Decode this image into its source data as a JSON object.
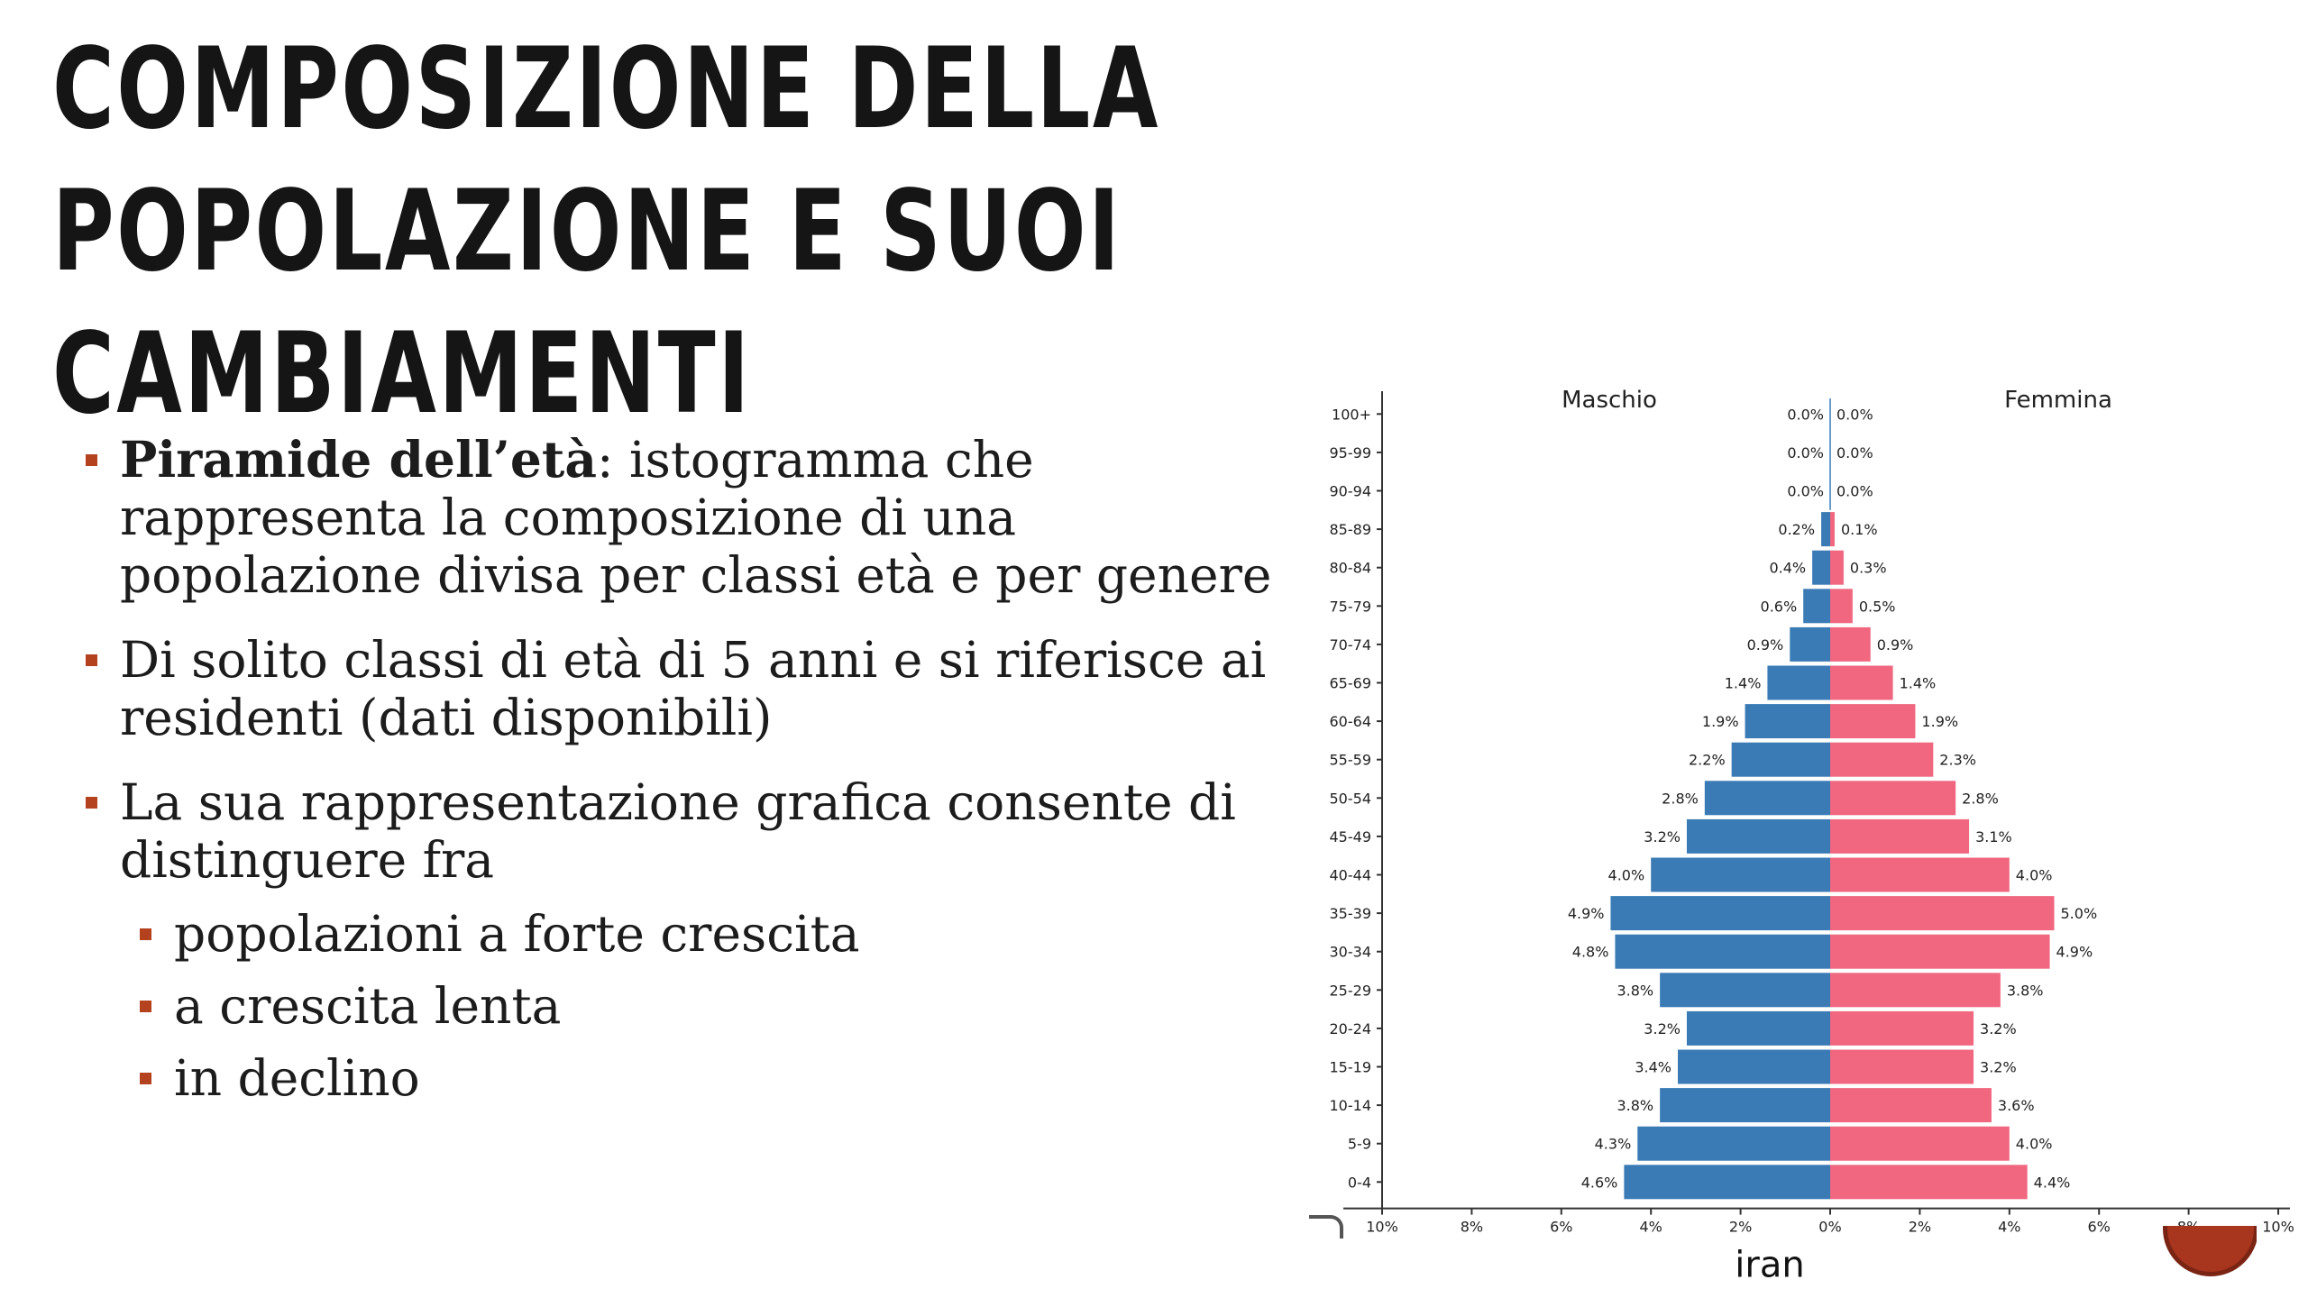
{
  "slide": {
    "title": "Composizione della popolazione e suoi cambiamenti",
    "bullet1_strong": "Piramide dell’età",
    "bullet1_rest": ": istogramma che rappresenta la composizione di una popolazione divisa per classi età e per genere",
    "bullet2": "Di solito classi di età di 5 anni e si riferisce ai residenti (dati disponibili)",
    "bullet3": "La sua rappresentazione grafica consente di distinguere fra",
    "sub_bullets": [
      "popolazioni a forte crescita",
      "a crescita lenta",
      "in declino"
    ],
    "marker_color": "#b4421f"
  },
  "chart_data": {
    "type": "bar",
    "orientation": "horizontal",
    "subtype": "population-pyramid",
    "title": "iran",
    "categories": [
      "100+",
      "95-99",
      "90-94",
      "85-89",
      "80-84",
      "75-79",
      "70-74",
      "65-69",
      "60-64",
      "55-59",
      "50-54",
      "45-49",
      "40-44",
      "35-39",
      "30-34",
      "25-29",
      "20-24",
      "15-19",
      "10-14",
      "5-9",
      "0-4"
    ],
    "series": [
      {
        "name": "Maschio",
        "color": "#3a7bb5",
        "values": [
          0.0,
          0.0,
          0.0,
          0.2,
          0.4,
          0.6,
          0.9,
          1.4,
          1.9,
          2.2,
          2.8,
          3.2,
          4.0,
          4.9,
          4.8,
          3.8,
          3.2,
          3.4,
          3.8,
          4.3,
          4.6
        ]
      },
      {
        "name": "Femmina",
        "color": "#f0677f",
        "values": [
          0.0,
          0.0,
          0.0,
          0.1,
          0.3,
          0.5,
          0.9,
          1.4,
          1.9,
          2.3,
          2.8,
          3.1,
          4.0,
          5.0,
          4.9,
          3.8,
          3.2,
          3.2,
          3.6,
          4.0,
          4.4
        ]
      }
    ],
    "xlim": [
      -10,
      10
    ],
    "xticks": [
      "10%",
      "8%",
      "6%",
      "4%",
      "2%",
      "0%",
      "2%",
      "4%",
      "6%",
      "8%",
      "10%"
    ],
    "unit": "%",
    "legend": "top"
  }
}
